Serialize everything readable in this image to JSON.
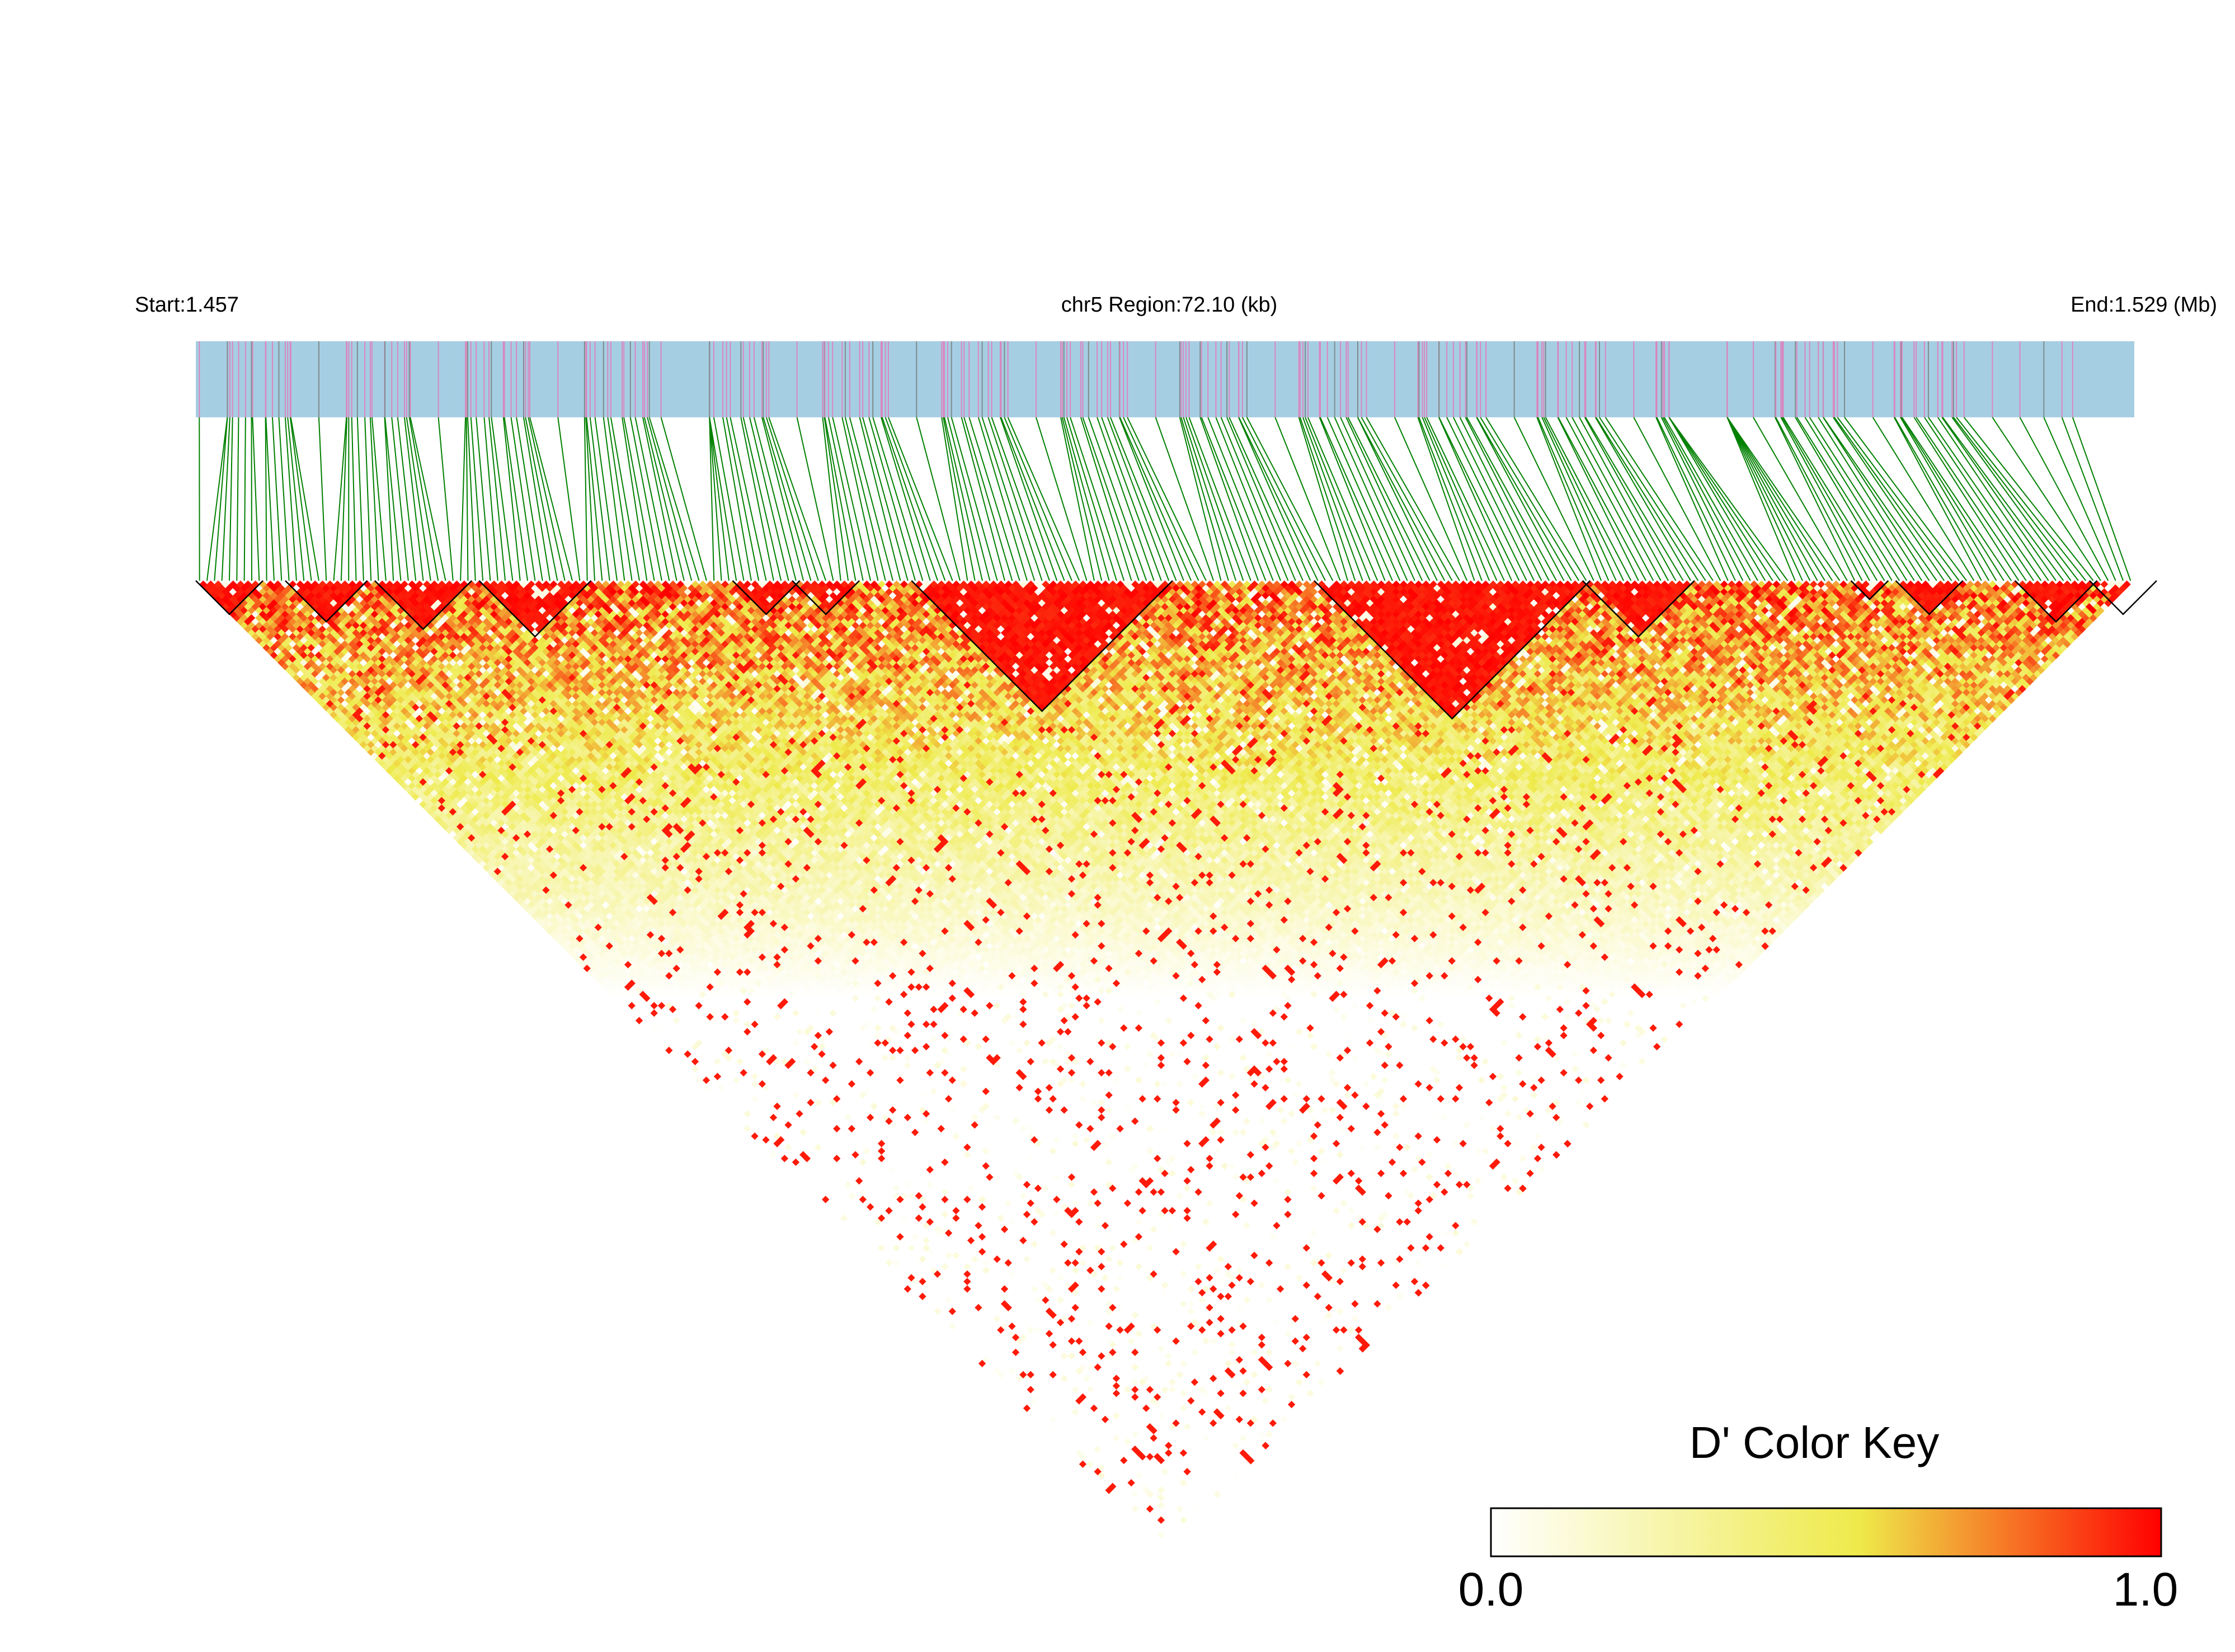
{
  "chart_data": {
    "type": "heatmap",
    "title": "",
    "header": {
      "start_label": "Start:1.457",
      "region_label": "chr5 Region:72.10 (kb)",
      "end_label": "End:1.529 (Mb)"
    },
    "region": {
      "chromosome": "chr5",
      "start_mb": 1.457,
      "end_mb": 1.529,
      "length_kb": 72.1
    },
    "colors": {
      "snp_bar_fill": "#a6cee3",
      "snp_tick_pink": "#d987c0",
      "snp_tick_gray": "#7f8c8d",
      "connector_line": "#008000",
      "block_outline": "#000000",
      "scale_low": "#ffffff",
      "scale_mid": "#eeea4a",
      "scale_high": "#ff0000"
    },
    "heatmap": {
      "value_metric": "D'",
      "value_range": [
        0.0,
        1.0
      ],
      "approx_snp_count": 260,
      "ld_blocks_snp_index_ranges": [
        [
          0,
          8
        ],
        [
          12,
          22
        ],
        [
          24,
          36
        ],
        [
          38,
          52
        ],
        [
          72,
          80
        ],
        [
          80,
          88
        ],
        [
          96,
          130
        ],
        [
          150,
          186
        ],
        [
          186,
          200
        ],
        [
          222,
          226
        ],
        [
          228,
          236
        ],
        [
          244,
          254
        ],
        [
          254,
          262
        ]
      ]
    },
    "color_key": {
      "title": "D' Color Key",
      "min_label": "0.0",
      "max_label": "1.0",
      "range": [
        0.0,
        1.0
      ]
    }
  }
}
